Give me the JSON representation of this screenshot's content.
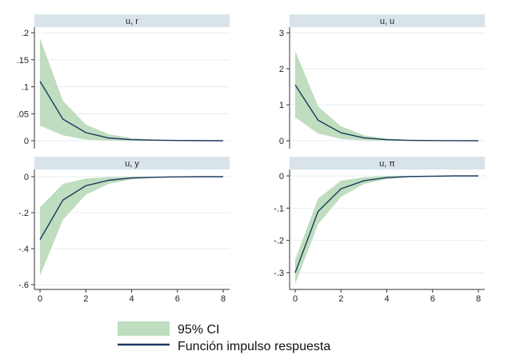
{
  "colors": {
    "band": "#bfddbf",
    "line": "#1b3a5e",
    "header": "#d8e4ea",
    "grid": "#e4eef2",
    "axis": "#333333"
  },
  "legend": {
    "ci_label": "95% CI",
    "line_label": "Función impulso respuesta",
    "placement": "bottom"
  },
  "chart_data": [
    {
      "type": "line",
      "title": "u, r",
      "x": [
        0,
        1,
        2,
        3,
        4,
        5,
        6,
        7,
        8
      ],
      "ylim": [
        0,
        0.2
      ],
      "yticks": [
        0,
        0.05,
        0.1,
        0.15,
        0.2
      ],
      "ytick_labels": [
        "0",
        ".05",
        ".1",
        ".15",
        ".2"
      ],
      "xticks": [
        0,
        2,
        4,
        6,
        8
      ],
      "xtick_labels": [],
      "mean": [
        0.11,
        0.04,
        0.015,
        0.005,
        0.002,
        0.001,
        0.0005,
        0.0002,
        0
      ],
      "lower": [
        0.028,
        0.01,
        0.002,
        0.0005,
        0,
        0,
        0,
        0,
        0
      ],
      "upper": [
        0.19,
        0.074,
        0.03,
        0.012,
        0.005,
        0.002,
        0.001,
        0.0005,
        0
      ]
    },
    {
      "type": "line",
      "title": "u, u",
      "x": [
        0,
        1,
        2,
        3,
        4,
        5,
        6,
        7,
        8
      ],
      "ylim": [
        0,
        3
      ],
      "yticks": [
        0,
        1,
        2,
        3
      ],
      "ytick_labels": [
        "0",
        "1",
        "2",
        "3"
      ],
      "xticks": [
        0,
        2,
        4,
        6,
        8
      ],
      "xtick_labels": [],
      "mean": [
        1.55,
        0.57,
        0.22,
        0.08,
        0.03,
        0.01,
        0.004,
        0.001,
        0
      ],
      "lower": [
        0.65,
        0.2,
        0.05,
        0.01,
        0,
        0,
        0,
        0,
        0
      ],
      "upper": [
        2.5,
        0.95,
        0.4,
        0.15,
        0.06,
        0.02,
        0.01,
        0.003,
        0
      ]
    },
    {
      "type": "line",
      "title": "u, y",
      "x": [
        0,
        1,
        2,
        3,
        4,
        5,
        6,
        7,
        8
      ],
      "ylim": [
        -0.6,
        0
      ],
      "yticks": [
        -0.6,
        -0.4,
        -0.2,
        0
      ],
      "ytick_labels": [
        "-.6",
        "-.4",
        "-.2",
        "0"
      ],
      "xticks": [
        0,
        2,
        4,
        6,
        8
      ],
      "xtick_labels": [
        "0",
        "2",
        "4",
        "6",
        "8"
      ],
      "mean": [
        -0.35,
        -0.13,
        -0.05,
        -0.02,
        -0.007,
        -0.003,
        -0.001,
        0,
        0
      ],
      "lower": [
        -0.55,
        -0.24,
        -0.1,
        -0.04,
        -0.015,
        -0.006,
        -0.002,
        -0.001,
        0
      ],
      "upper": [
        -0.17,
        -0.04,
        -0.01,
        -0.002,
        0,
        0,
        0,
        0,
        0
      ]
    },
    {
      "type": "line",
      "title": "u, π",
      "x": [
        0,
        1,
        2,
        3,
        4,
        5,
        6,
        7,
        8
      ],
      "ylim": [
        -0.35,
        0
      ],
      "yticks": [
        -0.3,
        -0.2,
        -0.1,
        0
      ],
      "ytick_labels": [
        "-.3",
        "-.2",
        "-.1",
        "0"
      ],
      "xticks": [
        0,
        2,
        4,
        6,
        8
      ],
      "xtick_labels": [
        "0",
        "2",
        "4",
        "6",
        "8"
      ],
      "mean": [
        -0.3,
        -0.11,
        -0.04,
        -0.015,
        -0.005,
        -0.002,
        -0.001,
        0,
        0
      ],
      "lower": [
        -0.335,
        -0.15,
        -0.065,
        -0.025,
        -0.01,
        -0.004,
        -0.001,
        0,
        0
      ],
      "upper": [
        -0.26,
        -0.07,
        -0.015,
        -0.004,
        0,
        0,
        0,
        0,
        0
      ]
    }
  ]
}
